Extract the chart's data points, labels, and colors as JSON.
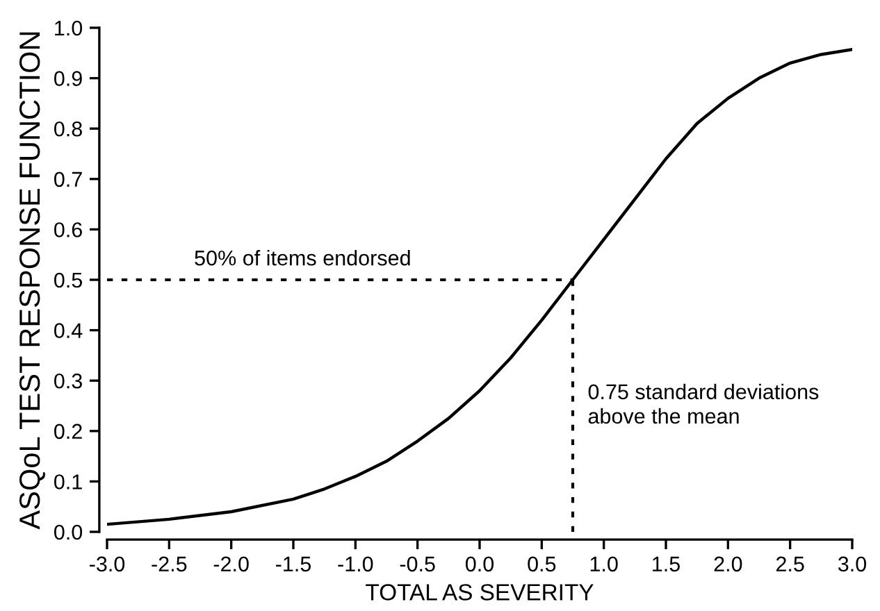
{
  "chart_data": {
    "type": "line",
    "xlabel": "TOTAL AS SEVERITY",
    "ylabel": "ASQoL TEST RESPONSE FUNCTION",
    "x": [
      -3.0,
      -2.5,
      -2.0,
      -1.5,
      -1.25,
      -1.0,
      -0.75,
      -0.5,
      -0.25,
      0.0,
      0.25,
      0.5,
      0.75,
      1.0,
      1.25,
      1.5,
      1.75,
      2.0,
      2.25,
      2.5,
      2.75,
      3.0
    ],
    "series": [
      {
        "color": "#000000",
        "values": [
          0.015,
          0.025,
          0.04,
          0.065,
          0.085,
          0.11,
          0.14,
          0.18,
          0.225,
          0.28,
          0.345,
          0.42,
          0.5,
          0.58,
          0.66,
          0.74,
          0.81,
          0.86,
          0.9,
          0.93,
          0.947,
          0.957
        ]
      }
    ],
    "xlim": [
      -3.0,
      3.0
    ],
    "ylim": [
      0.0,
      1.0
    ],
    "xticks": [
      {
        "value": -3,
        "label": "-3.0"
      },
      -2.5,
      {
        "value": -2,
        "label": "-2.0"
      },
      -1.5,
      {
        "value": -1,
        "label": "-1.0"
      },
      -0.5,
      {
        "value": 0,
        "label": "0.0"
      },
      0.5,
      {
        "value": 1,
        "label": "1.0"
      },
      1.5,
      {
        "value": 2,
        "label": "2.0"
      },
      2.5,
      {
        "value": 3,
        "label": "3.0"
      }
    ],
    "yticks": [
      {
        "value": 0,
        "label": "0.0"
      },
      0.1,
      0.2,
      0.3,
      0.4,
      0.5,
      0.6,
      0.7,
      0.8,
      0.9,
      {
        "value": 1,
        "label": "1.0"
      }
    ],
    "ref_lines": [
      {
        "axis": "y",
        "value": 0.5,
        "label": "50% of items endorsed",
        "color": "#000000",
        "line_style": "dotted"
      },
      {
        "axis": "x",
        "value": 0.75,
        "label": "0.75 standard deviations\nabove the mean",
        "color": "#000000",
        "line_style": "dotted"
      }
    ],
    "grid": false,
    "legend": false,
    "marker": "none",
    "line_style": "solid"
  }
}
